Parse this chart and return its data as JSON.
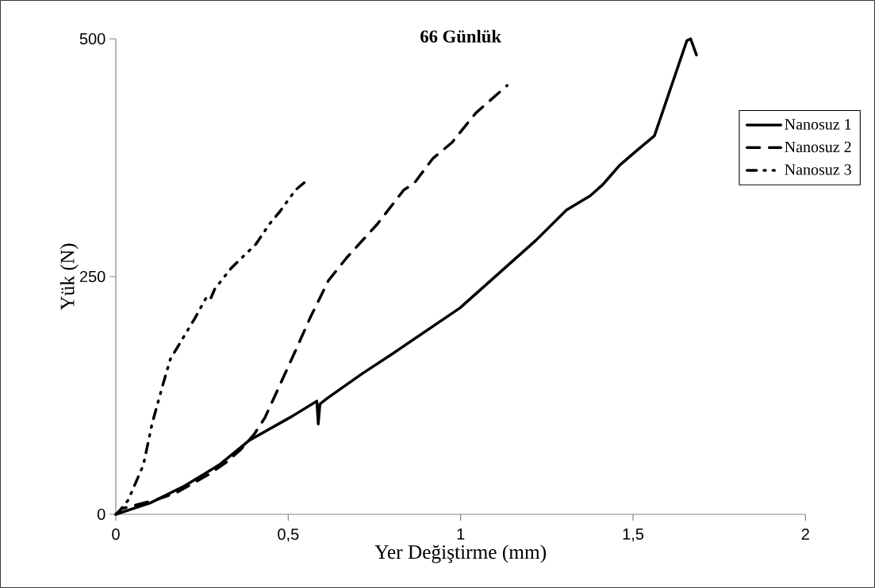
{
  "chart_data": {
    "type": "line",
    "title": "66 Günlük",
    "xlabel": "Yer Değiştirme (mm)",
    "ylabel": "Yük (N)",
    "xlim": [
      0,
      2
    ],
    "ylim": [
      0,
      500
    ],
    "xticks": [
      0,
      {
        "value": 0.5,
        "label": "0,5"
      },
      1,
      {
        "value": 1.5,
        "label": "1,5"
      },
      2
    ],
    "yticks": [
      0,
      250,
      500
    ],
    "grid": false,
    "legend": "right",
    "marker": "none",
    "series": [
      {
        "name": "Nanosuz 1",
        "color": "#000000",
        "line_style": "solid",
        "x": [
          0,
          0.1,
          0.2,
          0.3,
          0.388,
          0.511,
          0.583,
          0.587,
          0.592,
          0.613,
          0.715,
          0.803,
          0.998,
          1.218,
          1.307,
          1.376,
          1.413,
          1.461,
          1.509,
          1.562,
          1.656,
          1.667,
          1.684
        ],
        "values": [
          0,
          12,
          30,
          52,
          78,
          103,
          119,
          95,
          116,
          122,
          148,
          169,
          217,
          288,
          320,
          335,
          347,
          367,
          382,
          398,
          498,
          500,
          483
        ]
      },
      {
        "name": "Nanosuz 2",
        "color": "#000000",
        "line_style": "dashed",
        "x": [
          0,
          0.018,
          0.115,
          0.177,
          0.265,
          0.318,
          0.362,
          0.401,
          0.433,
          0.477,
          0.521,
          0.564,
          0.617,
          0.67,
          0.758,
          0.835,
          0.865,
          0.919,
          0.975,
          1.044,
          1.135
        ],
        "values": [
          0,
          6,
          15,
          23,
          41,
          54,
          68,
          84,
          102,
          137,
          172,
          207,
          246,
          270,
          305,
          341,
          348,
          374,
          391,
          422,
          451
        ]
      },
      {
        "name": "Nanosuz 3",
        "color": "#000000",
        "line_style": "dashdotdotted",
        "x": [
          0,
          0.005,
          0.036,
          0.08,
          0.105,
          0.137,
          0.158,
          0.186,
          0.229,
          0.261,
          0.273,
          0.287,
          0.335,
          0.406,
          0.445,
          0.475,
          0.521,
          0.557
        ],
        "values": [
          0,
          1,
          15,
          52,
          95,
          137,
          163,
          180,
          206,
          227,
          225,
          237,
          259,
          284,
          305,
          318,
          341,
          352
        ]
      }
    ]
  }
}
